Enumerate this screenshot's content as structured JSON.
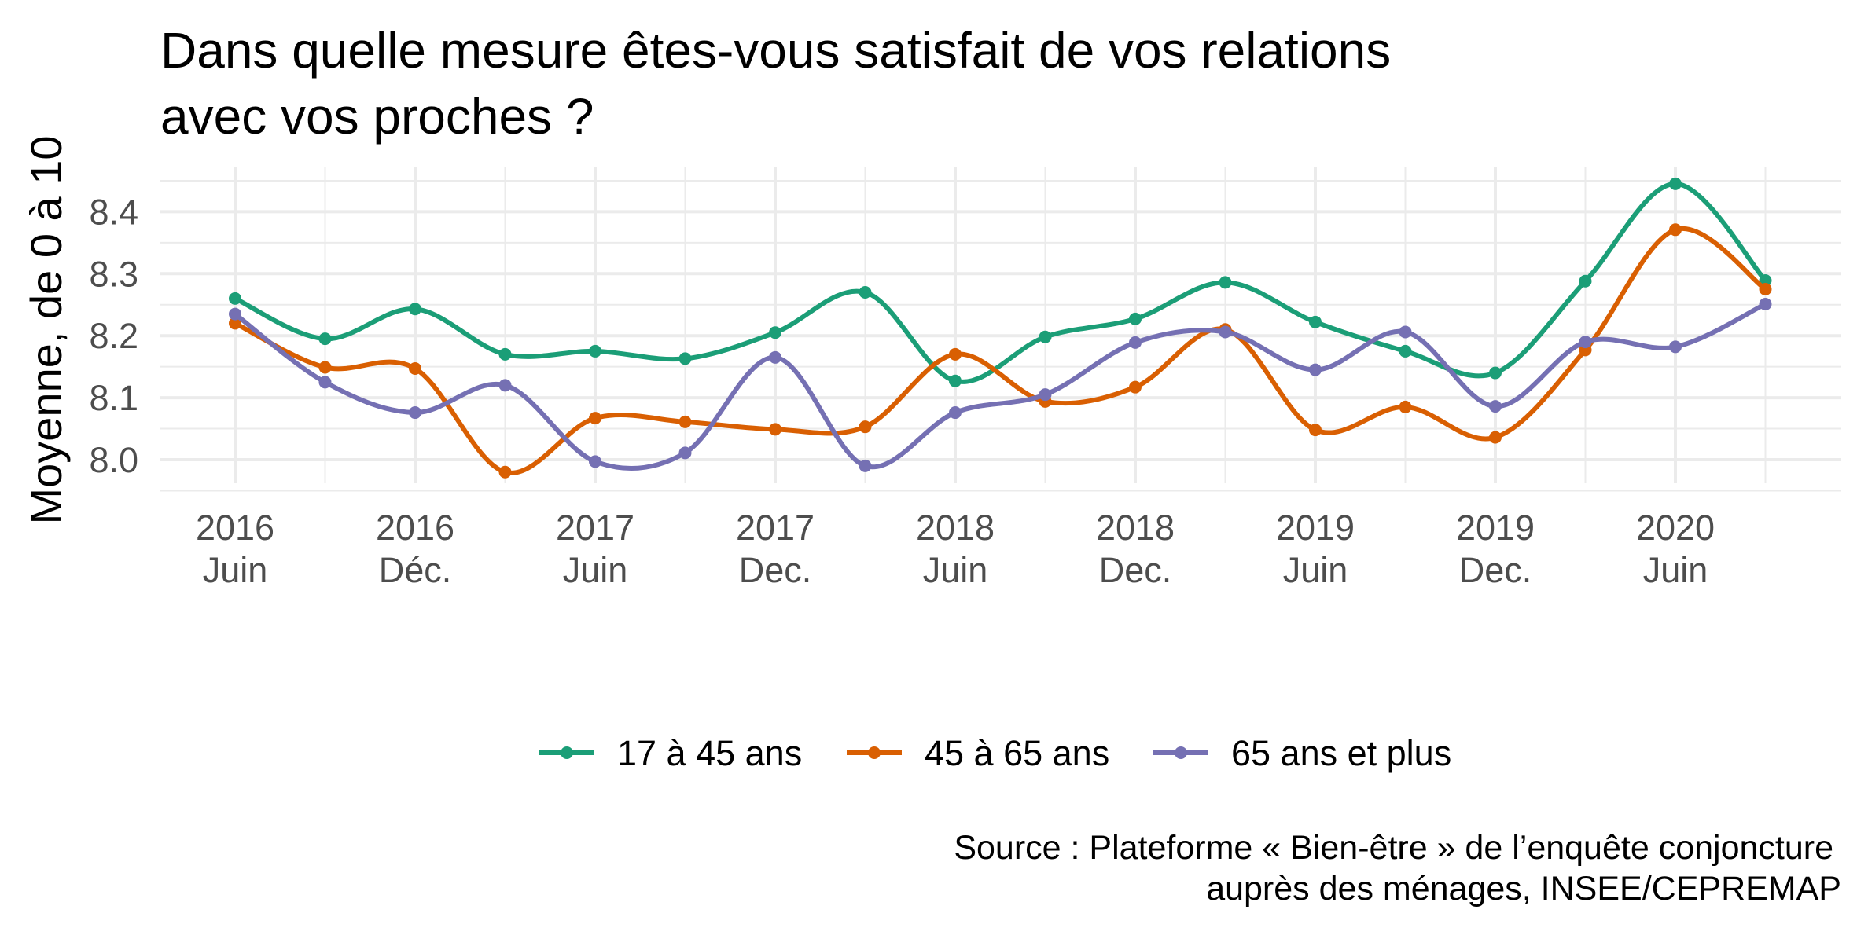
{
  "chart_data": {
    "type": "line",
    "title_lines": [
      "Dans quelle mesure êtes-vous satisfait de vos relations",
      "avec vos proches ?"
    ],
    "xlabel": "",
    "ylabel": "Moyenne, de 0 à 10",
    "ylim": [
      7.95,
      8.47
    ],
    "y_ticks": [
      "8.0",
      "8.1",
      "8.2",
      "8.3",
      "8.4"
    ],
    "y_tick_values": [
      8.0,
      8.1,
      8.2,
      8.3,
      8.4
    ],
    "x_ticks": [
      {
        "line1": "2016",
        "line2": "Juin"
      },
      {
        "line1": "2016",
        "line2": "Déc."
      },
      {
        "line1": "2017",
        "line2": "Juin"
      },
      {
        "line1": "2017",
        "line2": "Dec."
      },
      {
        "line1": "2018",
        "line2": "Juin"
      },
      {
        "line1": "2018",
        "line2": "Dec."
      },
      {
        "line1": "2019",
        "line2": "Juin"
      },
      {
        "line1": "2019",
        "line2": "Dec."
      },
      {
        "line1": "2020",
        "line2": "Juin"
      }
    ],
    "x": [
      "2016-06",
      "2016-09",
      "2016-12",
      "2017-03",
      "2017-06",
      "2017-09",
      "2017-12",
      "2018-03",
      "2018-06",
      "2018-09",
      "2018-12",
      "2019-03",
      "2019-06",
      "2019-09",
      "2019-12",
      "2020-03",
      "2020-06",
      "2020-09"
    ],
    "series": [
      {
        "name": "17 à 45 ans",
        "color": "#1b9e77",
        "values": [
          8.26,
          8.195,
          8.243,
          8.17,
          8.175,
          8.163,
          8.205,
          8.27,
          8.127,
          8.198,
          8.227,
          8.286,
          8.222,
          8.175,
          8.14,
          8.288,
          8.445,
          8.289
        ]
      },
      {
        "name": "45 à 65 ans",
        "color": "#d95f02",
        "values": [
          8.22,
          8.149,
          8.147,
          7.98,
          8.067,
          8.061,
          8.049,
          8.053,
          8.17,
          8.094,
          8.117,
          8.21,
          8.048,
          8.085,
          8.036,
          8.177,
          8.371,
          8.275
        ]
      },
      {
        "name": "65 ans et plus",
        "color": "#7570b3",
        "values": [
          8.235,
          8.125,
          8.076,
          8.12,
          7.997,
          8.011,
          8.165,
          7.99,
          8.076,
          8.105,
          8.189,
          8.206,
          8.145,
          8.206,
          8.086,
          8.19,
          8.182,
          8.251
        ]
      }
    ],
    "legend_position": "bottom",
    "grid": true,
    "caption_lines": [
      "Source : Plateforme « Bien-être » de l’enquête conjoncture ",
      "auprès des ménages, INSEE/CEPREMAP"
    ]
  }
}
